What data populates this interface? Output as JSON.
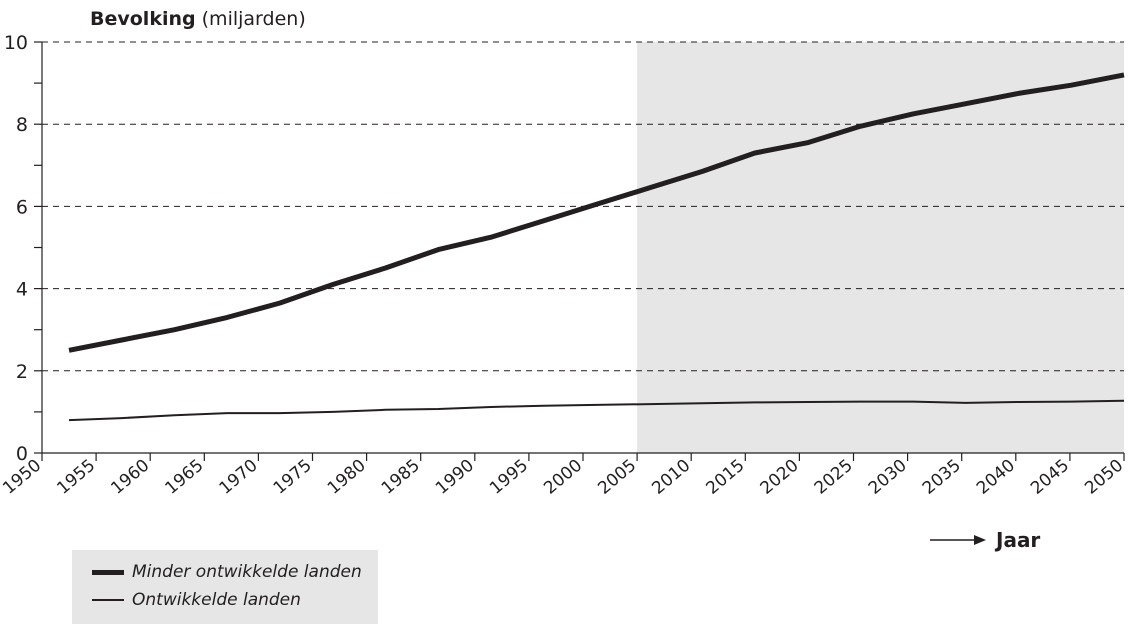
{
  "chart_data": {
    "type": "line",
    "ylabel_bold": "Bevolking",
    "ylabel_rest": " (miljarden)",
    "xlabel": "Jaar",
    "ylim": [
      0,
      10
    ],
    "yticks": [
      0,
      2,
      4,
      6,
      8,
      10
    ],
    "xlim": [
      1950,
      2050
    ],
    "xtick_labels": [
      "1950",
      "1955",
      "1960",
      "1965",
      "1970",
      "1975",
      "1980",
      "1985",
      "1990",
      "1995",
      "2000",
      "2005",
      "2010",
      "2015",
      "2020",
      "2025",
      "2030",
      "2035",
      "2040",
      "2045",
      "2050"
    ],
    "grid": "horizontal dashed at labeled y ticks",
    "projection_shaded_from": 2005,
    "legend_position": "bottom-left",
    "series": [
      {
        "name": "Minder ontwikkelde landen",
        "x": [
          1950,
          1955,
          1960,
          1965,
          1970,
          1975,
          1980,
          1985,
          1990,
          1995,
          2000,
          2005,
          2010,
          2015,
          2020,
          2025,
          2030,
          2035,
          2040,
          2045,
          2050
        ],
        "values": [
          2.5,
          2.75,
          3.0,
          3.3,
          3.65,
          4.1,
          4.5,
          4.95,
          5.25,
          5.65,
          6.05,
          6.45,
          6.85,
          7.3,
          7.55,
          7.95,
          8.25,
          8.5,
          8.75,
          8.95,
          9.2
        ]
      },
      {
        "name": "Ontwikkelde landen",
        "x": [
          1950,
          1955,
          1960,
          1965,
          1970,
          1975,
          1980,
          1985,
          1990,
          1995,
          2000,
          2005,
          2010,
          2015,
          2020,
          2025,
          2030,
          2035,
          2040,
          2045,
          2050
        ],
        "values": [
          0.8,
          0.85,
          0.92,
          0.97,
          0.97,
          1.0,
          1.05,
          1.07,
          1.12,
          1.15,
          1.17,
          1.19,
          1.21,
          1.23,
          1.24,
          1.25,
          1.25,
          1.22,
          1.24,
          1.25,
          1.27
        ]
      }
    ]
  },
  "colors": {
    "line": "#231f20",
    "projection_shade": "#e6e6e6",
    "grid": "#231f20",
    "legend_bg": "#e6e6e6"
  }
}
